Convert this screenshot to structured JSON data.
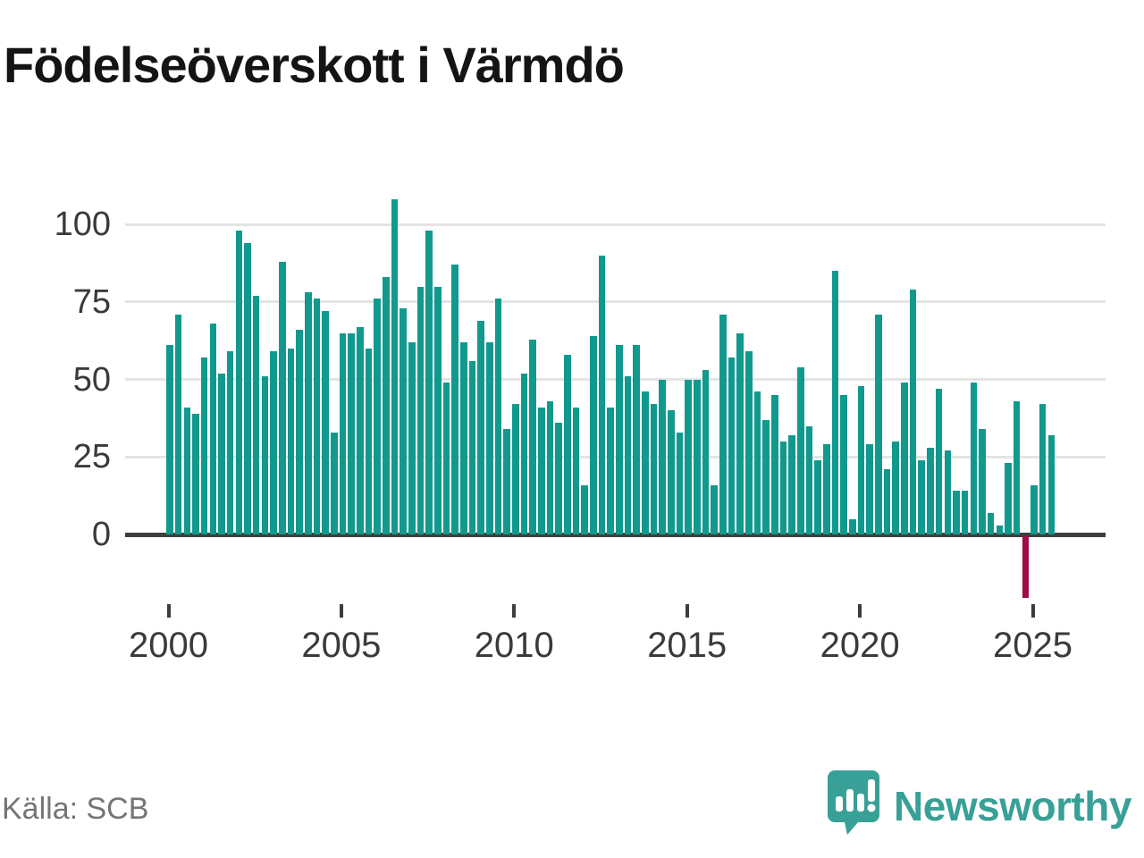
{
  "title": "Födelseöverskott i Värmdö",
  "source": "Källa: SCB",
  "logo": {
    "brand": "Newsworthy"
  },
  "colors": {
    "bar": "#12998e",
    "negative_bar": "#a30a47",
    "logo_teal": "#38a096",
    "title_text": "#141414",
    "axis_text": "#3a3a3a",
    "source_text": "#757575",
    "gridline": "#e4e4e4",
    "axis_line": "#3d3d3d"
  },
  "chart_data": {
    "type": "bar",
    "title": "Födelseöverskott i Värmdö",
    "xlabel": "",
    "ylabel": "",
    "grid": true,
    "x_unit": "quarter",
    "start_year": 2000,
    "start_quarter": 1,
    "x_tick_years": [
      2000,
      2005,
      2010,
      2015,
      2020,
      2025
    ],
    "y_ticks": [
      0,
      25,
      50,
      75,
      100
    ],
    "ylim": [
      -25,
      110
    ],
    "values": [
      61,
      71,
      41,
      39,
      57,
      68,
      52,
      59,
      98,
      94,
      77,
      51,
      59,
      88,
      60,
      66,
      78,
      76,
      72,
      33,
      65,
      65,
      67,
      60,
      76,
      83,
      108,
      73,
      62,
      80,
      98,
      80,
      49,
      87,
      62,
      56,
      69,
      62,
      76,
      34,
      42,
      52,
      63,
      41,
      43,
      36,
      58,
      41,
      16,
      64,
      90,
      41,
      61,
      51,
      61,
      46,
      42,
      50,
      40,
      33,
      50,
      50,
      53,
      16,
      71,
      57,
      65,
      59,
      46,
      37,
      45,
      30,
      32,
      54,
      35,
      24,
      29,
      85,
      45,
      5,
      48,
      29,
      71,
      21,
      30,
      49,
      79,
      24,
      28,
      47,
      27,
      14,
      14,
      49,
      34,
      7,
      3,
      23,
      43,
      -20,
      16,
      42,
      32
    ]
  }
}
